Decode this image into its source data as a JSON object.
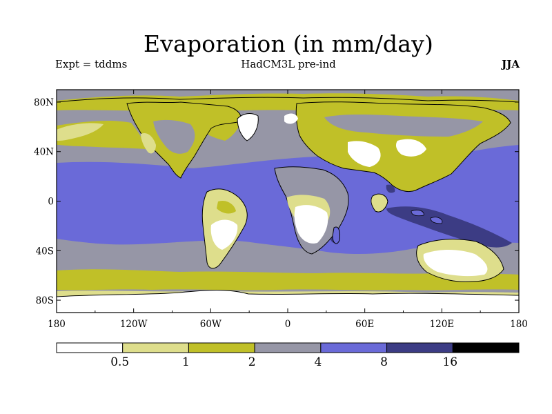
{
  "map": {
    "title": "Evaporation (in mm/day)",
    "experiment": "Expt = tddms",
    "model": "HadCM3L pre-ind",
    "season": "JJA",
    "lon_ticks": [
      {
        "lon": -180,
        "label": "180"
      },
      {
        "lon": -120,
        "label": "120W"
      },
      {
        "lon": -60,
        "label": "60W"
      },
      {
        "lon": 0,
        "label": "0"
      },
      {
        "lon": 60,
        "label": "60E"
      },
      {
        "lon": 120,
        "label": "120E"
      },
      {
        "lon": 180,
        "label": "180"
      }
    ],
    "lat_ticks": [
      {
        "lat": 80,
        "label": "80N"
      },
      {
        "lat": 40,
        "label": "40N"
      },
      {
        "lat": 0,
        "label": "0"
      },
      {
        "lat": -40,
        "label": "40S"
      },
      {
        "lat": -80,
        "label": "80S"
      }
    ],
    "colors": {
      "lt05": "#ffffff",
      "b05_1": "#dede8c",
      "b1_2": "#c0c028",
      "b2_4": "#9696a6",
      "b4_8": "#6a6ad8",
      "b8_16": "#3c3c84",
      "gt16": "#000000"
    }
  },
  "colorbar": {
    "bins": [
      {
        "color": "#ffffff"
      },
      {
        "color": "#dede8c"
      },
      {
        "color": "#c0c028"
      },
      {
        "color": "#9696a6"
      },
      {
        "color": "#6a6ad8"
      },
      {
        "color": "#3c3c84"
      },
      {
        "color": "#000000"
      }
    ],
    "labels": [
      "0.5",
      "1",
      "2",
      "4",
      "8",
      "16"
    ]
  }
}
